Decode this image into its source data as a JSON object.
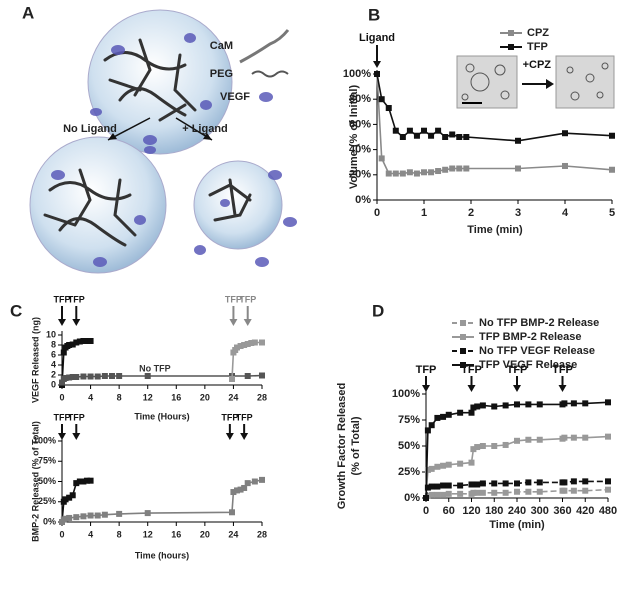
{
  "panel_a": {
    "label": "A",
    "legend": [
      "CaM",
      "PEG",
      "VEGF"
    ],
    "branches": [
      "No Ligand",
      "+ Ligand"
    ]
  },
  "chart_data": [
    {
      "type": "line",
      "panel": "B",
      "xlabel": "Time (min)",
      "ylabel": "Volume (% of Initial)",
      "xlim": [
        0,
        5
      ],
      "xticks": [
        0,
        1,
        2,
        3,
        4,
        5
      ],
      "ylim": [
        0,
        100
      ],
      "yticks": [
        {
          "value": 0,
          "label": "0%"
        },
        {
          "value": 20,
          "label": "20%"
        },
        {
          "value": 40,
          "label": "40%"
        },
        {
          "value": 60,
          "label": "60%"
        },
        {
          "value": 80,
          "label": "80%"
        },
        {
          "value": 100,
          "label": "100%"
        }
      ],
      "legend": true,
      "x": [
        0,
        0.1,
        0.25,
        0.4,
        0.55,
        0.7,
        0.85,
        1,
        1.15,
        1.3,
        1.45,
        1.6,
        1.75,
        1.9,
        3,
        4,
        5
      ],
      "series": [
        {
          "name": "CPZ",
          "color": "#8a8a8a",
          "values": [
            100,
            33,
            21,
            21,
            21,
            22,
            21,
            22,
            22,
            23,
            24,
            25,
            25,
            25,
            25,
            27,
            24
          ]
        },
        {
          "name": "TFP",
          "color": "#111111",
          "values": [
            100,
            80,
            73,
            55,
            50,
            55,
            51,
            55,
            51,
            55,
            50,
            52,
            50,
            50,
            47,
            53,
            51
          ]
        }
      ],
      "annotations": [
        {
          "text": "Ligand",
          "x": 0,
          "arrow": true,
          "color": "#111111"
        },
        {
          "text": "+CPZ",
          "x": 3.4,
          "y": 107,
          "color": "#111111"
        }
      ]
    },
    {
      "type": "line",
      "panel": "C",
      "xlabel": "Time (Hours)",
      "ylabel": "VEGF Released (ng)",
      "xlim": [
        0,
        28
      ],
      "xticks": [
        0,
        4,
        8,
        12,
        16,
        20,
        24,
        28
      ],
      "ylim": [
        0,
        10
      ],
      "yticks": [
        0,
        2,
        4,
        6,
        8,
        10
      ],
      "series": [
        {
          "color": "#111111",
          "x": [
            0,
            0.25,
            0.5,
            0.75,
            1,
            1.5,
            2,
            2.5,
            3,
            3.5,
            4
          ],
          "values": [
            0,
            6.5,
            7.5,
            7.8,
            8,
            8.1,
            8.5,
            8.7,
            8.8,
            8.8,
            8.8
          ]
        },
        {
          "color": "#555555",
          "x": [
            0,
            0.25,
            0.5,
            1,
            1.5,
            2,
            3,
            4,
            5,
            6,
            7,
            8,
            12,
            23.8,
            26,
            28
          ],
          "values": [
            0.5,
            1.2,
            1.4,
            1.5,
            1.6,
            1.6,
            1.7,
            1.7,
            1.7,
            1.8,
            1.8,
            1.8,
            1.8,
            1.8,
            1.8,
            1.9
          ]
        },
        {
          "color": "#999999",
          "x": [
            23.8,
            24,
            24.25,
            24.5,
            25,
            25.5,
            26,
            26.5,
            27,
            28
          ],
          "values": [
            1.2,
            6.5,
            7,
            7.5,
            7.8,
            8,
            8.2,
            8.4,
            8.5,
            8.5
          ]
        }
      ],
      "annotations": [
        {
          "text": "TFP",
          "x": 0,
          "arrow": true,
          "color": "#111111"
        },
        {
          "text": "TFP",
          "x": 2,
          "arrow": true,
          "color": "#111111"
        },
        {
          "text": "TFP",
          "x": 24,
          "arrow": true,
          "color": "#888888"
        },
        {
          "text": "TFP",
          "x": 26,
          "arrow": true,
          "color": "#888888"
        },
        {
          "text": "No TFP",
          "x": 13,
          "y": 3.2,
          "color": "#333333"
        }
      ]
    },
    {
      "type": "line",
      "xlabel": "Time (hours)",
      "ylabel": "BMP-2 Released (% of Total)",
      "xlim": [
        0,
        28
      ],
      "xticks": [
        0,
        4,
        8,
        12,
        16,
        20,
        24,
        28
      ],
      "ylim": [
        0,
        100
      ],
      "yticks": [
        {
          "value": 0,
          "label": "0%"
        },
        {
          "value": 25,
          "label": "25%"
        },
        {
          "value": 50,
          "label": "50%"
        },
        {
          "value": 75,
          "label": "75%"
        },
        {
          "value": 100,
          "label": "100%"
        }
      ],
      "series": [
        {
          "color": "#111111",
          "x": [
            0,
            0.25,
            0.5,
            1,
            1.5,
            2,
            2.5,
            3,
            3.5,
            4
          ],
          "values": [
            0,
            25,
            28,
            30,
            33,
            48,
            50,
            50,
            51,
            51
          ]
        },
        {
          "color": "#808080",
          "x": [
            0,
            0.25,
            0.5,
            1,
            2,
            3,
            4,
            5,
            6,
            8,
            12,
            23.8,
            24,
            24.5,
            25,
            25.5,
            26,
            27,
            28
          ],
          "values": [
            0,
            3,
            4,
            5,
            6,
            7,
            8,
            8,
            9,
            10,
            11,
            12,
            37,
            39,
            40,
            42,
            48,
            50,
            52
          ]
        }
      ],
      "annotations": [
        {
          "text": "TFP",
          "x": 0,
          "arrow": true,
          "color": "#111111"
        },
        {
          "text": "TFP",
          "x": 2,
          "arrow": true,
          "color": "#111111"
        },
        {
          "text": "TFP",
          "x": 23.5,
          "arrow": true,
          "color": "#111111"
        },
        {
          "text": "TFP",
          "x": 25.5,
          "arrow": true,
          "color": "#111111"
        }
      ]
    },
    {
      "type": "line",
      "panel": "D",
      "xlabel": "Time (min)",
      "ylabel": [
        "Growth Factor Released",
        "(% of Total)"
      ],
      "xlim": [
        0,
        480
      ],
      "xticks": [
        0,
        60,
        120,
        180,
        240,
        300,
        360,
        420,
        480
      ],
      "ylim": [
        0,
        100
      ],
      "yticks": [
        {
          "value": 0,
          "label": "0%"
        },
        {
          "value": 25,
          "label": "25%"
        },
        {
          "value": 50,
          "label": "50%"
        },
        {
          "value": 75,
          "label": "75%"
        },
        {
          "value": 100,
          "label": "100%"
        }
      ],
      "legend": true,
      "x": [
        0,
        5,
        15,
        30,
        45,
        60,
        90,
        120,
        125,
        135,
        150,
        180,
        210,
        240,
        270,
        300,
        360,
        365,
        390,
        420,
        480
      ],
      "series": [
        {
          "name": "No TFP BMP-2 Release",
          "color": "#999999",
          "dash": true,
          "values": [
            0,
            2,
            3,
            3,
            3,
            4,
            4,
            4,
            5,
            5,
            5,
            5,
            5,
            6,
            6,
            6,
            7,
            7,
            7,
            7,
            8
          ]
        },
        {
          "name": "TFP BMP-2 Release",
          "color": "#999999",
          "values": [
            0,
            27,
            28,
            30,
            31,
            32,
            33,
            34,
            47,
            49,
            50,
            50,
            51,
            55,
            56,
            56,
            57,
            58,
            58,
            58,
            59
          ]
        },
        {
          "name": "No TFP VEGF Release",
          "color": "#111111",
          "dash": true,
          "values": [
            0,
            10,
            11,
            11,
            12,
            12,
            12,
            13,
            13,
            13,
            14,
            14,
            14,
            14,
            15,
            15,
            15,
            15,
            16,
            16,
            16
          ]
        },
        {
          "name": "TFP VEGF Release",
          "color": "#111111",
          "values": [
            0,
            65,
            70,
            77,
            78,
            80,
            82,
            82,
            87,
            88,
            89,
            88,
            89,
            90,
            90,
            90,
            90,
            91,
            91,
            91,
            92
          ]
        }
      ],
      "annotations": [
        {
          "text": "TFP",
          "x": 0,
          "arrow": true,
          "color": "#111111"
        },
        {
          "text": "TFP",
          "x": 120,
          "arrow": true,
          "color": "#111111"
        },
        {
          "text": "TFP",
          "x": 240,
          "arrow": true,
          "color": "#111111"
        },
        {
          "text": "TFP",
          "x": 360,
          "arrow": true,
          "color": "#111111"
        }
      ]
    }
  ]
}
